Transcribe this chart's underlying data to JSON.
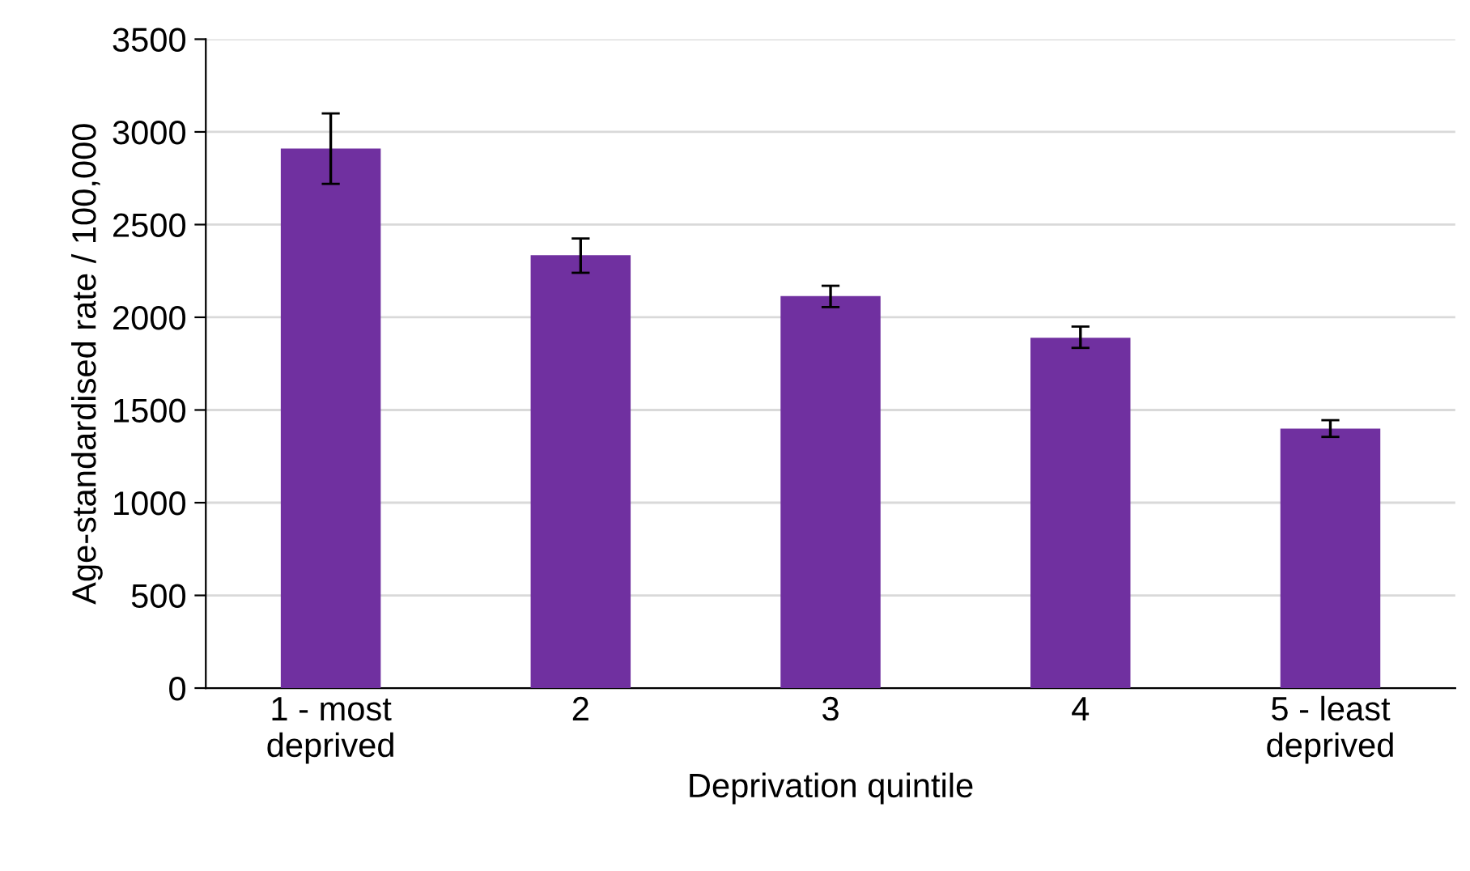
{
  "chart_data": {
    "type": "bar",
    "xlabel": "Deprivation quintile",
    "ylabel": "Age-standardised rate / 100,000",
    "categories": [
      "1 - most\ndeprived",
      "2",
      "3",
      "4",
      "5 - least\ndeprived"
    ],
    "values": [
      2910,
      2335,
      2115,
      1890,
      1400
    ],
    "errors": [
      [
        2720,
        3100
      ],
      [
        2240,
        2425
      ],
      [
        2055,
        2170
      ],
      [
        1835,
        1950
      ],
      [
        1355,
        1445
      ]
    ],
    "color": "#7030a0",
    "ylim": [
      0,
      3500
    ],
    "yticks": [
      0,
      500,
      1000,
      1500,
      2000,
      2500,
      3000,
      3500
    ],
    "grid": "y",
    "legend": false
  }
}
